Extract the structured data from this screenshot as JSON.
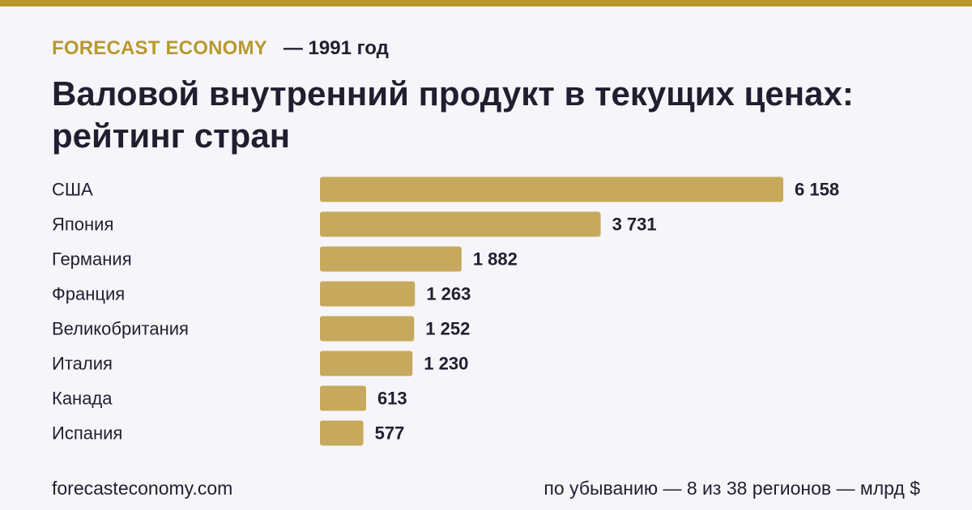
{
  "header": {
    "brand": "FORECAST ECONOMY",
    "year_label": "— 1991 год",
    "title": "Валовой внутренний продукт в текущих ценах: рейтинг стран"
  },
  "footer": {
    "site": "forecasteconomy.com",
    "note": "по убыванию — 8 из 38 регионов — млрд $"
  },
  "colors": {
    "accent": "#b8982e",
    "bar": "#c6a95c",
    "text": "#1f1f30",
    "background": "#f6f6fa"
  },
  "chart_data": {
    "type": "bar",
    "orientation": "horizontal",
    "title": "Валовой внутренний продукт в текущих ценах: рейтинг стран",
    "unit": "млрд $",
    "categories": [
      "США",
      "Япония",
      "Германия",
      "Франция",
      "Великобритания",
      "Италия",
      "Канада",
      "Испания"
    ],
    "values": [
      6158,
      3731,
      1882,
      1263,
      1252,
      1230,
      613,
      577
    ],
    "value_labels": [
      "6 158",
      "3 731",
      "1 882",
      "1 263",
      "1 252",
      "1 230",
      "613",
      "577"
    ],
    "grid": false,
    "legend": "none"
  }
}
